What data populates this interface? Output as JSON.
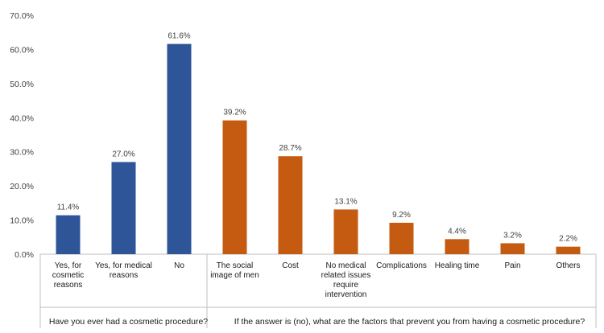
{
  "chart_data": {
    "type": "bar",
    "ylim": [
      0,
      70
    ],
    "yticks": [
      "0.0%",
      "10.0%",
      "20.0%",
      "30.0%",
      "40.0%",
      "50.0%",
      "60.0%",
      "70.0%"
    ],
    "colors": {
      "group1": "#2e5597",
      "group2": "#c55a11"
    },
    "groups": [
      {
        "label": "Have you ever had a cosmetic procedure?",
        "categories": [
          {
            "label": [
              "Yes, for",
              "cosmetic",
              "reasons"
            ],
            "value": 11.4,
            "text": "11.4%"
          },
          {
            "label": [
              "Yes, for medical",
              "reasons"
            ],
            "value": 27.0,
            "text": "27.0%"
          },
          {
            "label": [
              "No"
            ],
            "value": 61.6,
            "text": "61.6%"
          }
        ]
      },
      {
        "label": "If the answer is (no), what are the factors that prevent you from having a cosmetic procedure?",
        "categories": [
          {
            "label": [
              "The social",
              "image of men"
            ],
            "value": 39.2,
            "text": "39.2%"
          },
          {
            "label": [
              "Cost"
            ],
            "value": 28.7,
            "text": "28.7%"
          },
          {
            "label": [
              "No medical",
              "related issues",
              "require",
              "intervention"
            ],
            "value": 13.1,
            "text": "13.1%"
          },
          {
            "label": [
              "Complications"
            ],
            "value": 9.2,
            "text": "9.2%"
          },
          {
            "label": [
              "Healing time"
            ],
            "value": 4.4,
            "text": "4.4%"
          },
          {
            "label": [
              "Pain"
            ],
            "value": 3.2,
            "text": "3.2%"
          },
          {
            "label": [
              "Others"
            ],
            "value": 2.2,
            "text": "2.2%"
          }
        ]
      }
    ]
  }
}
